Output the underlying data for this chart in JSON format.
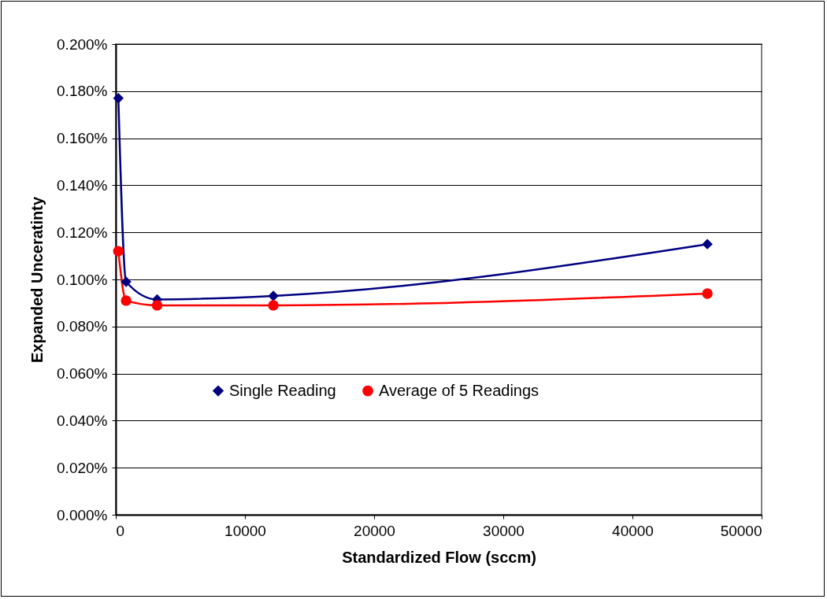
{
  "chart_data": {
    "type": "line",
    "xlabel": "Standardized Flow (sccm)",
    "ylabel": "Expanded Unceratinty",
    "series": [
      {
        "name": "Single Reading",
        "color": "#000080",
        "marker": "diamond",
        "x": [
          200,
          800,
          3200,
          12200,
          45800
        ],
        "values": [
          0.177,
          0.099,
          0.0915,
          0.093,
          0.115
        ]
      },
      {
        "name": "Average of 5 Readings",
        "color": "#ff0000",
        "marker": "circle",
        "x": [
          200,
          800,
          3200,
          12200,
          45800
        ],
        "values": [
          0.112,
          0.091,
          0.089,
          0.089,
          0.094
        ]
      }
    ],
    "xlim": [
      0,
      50000
    ],
    "xticks": [
      0,
      10000,
      20000,
      30000,
      40000,
      50000
    ],
    "ylim": [
      0,
      0.2
    ],
    "yticks": [
      {
        "value": 0,
        "label": "0.000%"
      },
      {
        "value": 0.02,
        "label": "0.020%"
      },
      {
        "value": 0.04,
        "label": "0.040%"
      },
      {
        "value": 0.06,
        "label": "0.060%"
      },
      {
        "value": 0.08,
        "label": "0.080%"
      },
      {
        "value": 0.1,
        "label": "0.100%"
      },
      {
        "value": 0.12,
        "label": "0.120%"
      },
      {
        "value": 0.14,
        "label": "0.140%"
      },
      {
        "value": 0.16,
        "label": "0.160%"
      },
      {
        "value": 0.18,
        "label": "0.180%"
      },
      {
        "value": 0.2,
        "label": "0.200%"
      }
    ],
    "grid": "y",
    "legend": "center",
    "line_style": "solid"
  }
}
